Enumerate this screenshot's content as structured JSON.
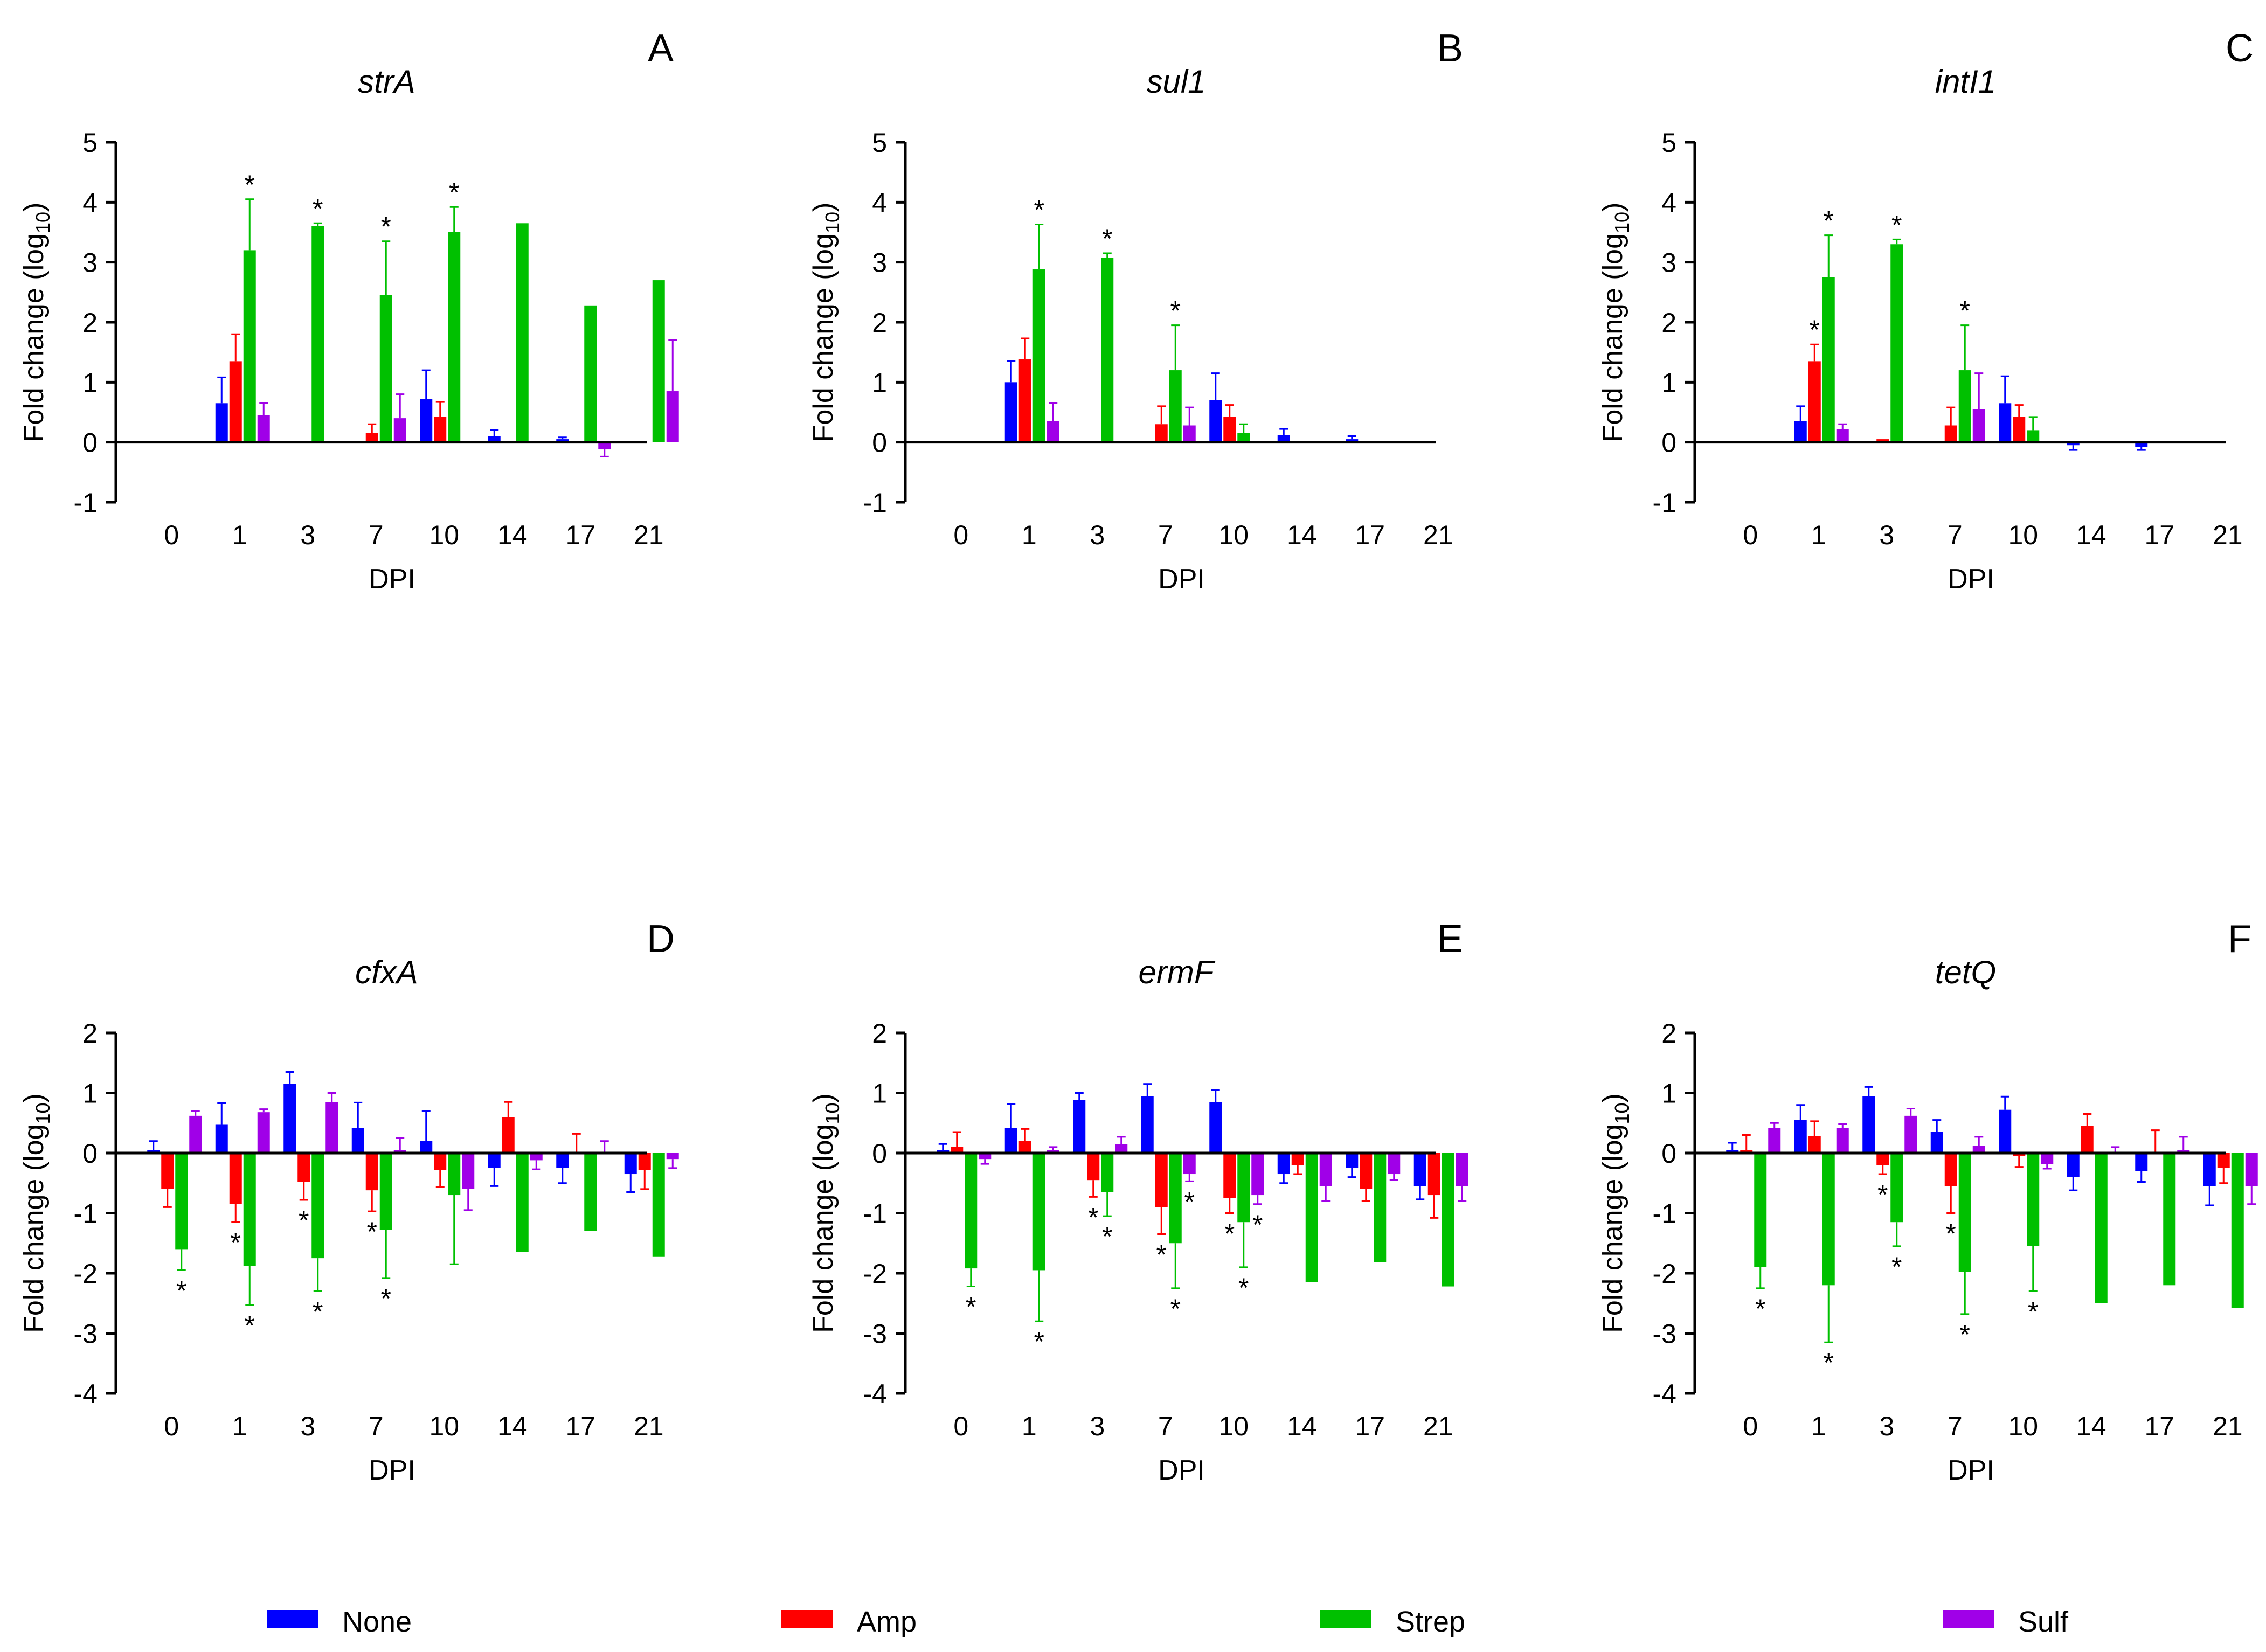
{
  "x_label": "DPI",
  "y_label_main": "Fold change (log",
  "y_label_sub": "10",
  "y_label_close": ")",
  "legend": [
    {
      "name": "None",
      "color": "#0000ff"
    },
    {
      "name": "Amp",
      "color": "#ff0000"
    },
    {
      "name": "Strep",
      "color": "#00c000"
    },
    {
      "name": "Sulf",
      "color": "#a000e8"
    }
  ],
  "chart_data": [
    {
      "type": "bar",
      "panel": "A",
      "title": "strA",
      "categories": [
        "0",
        "1",
        "3",
        "7",
        "10",
        "14",
        "17",
        "21"
      ],
      "ylim": [
        -1,
        5
      ],
      "yticks": [
        -1,
        0,
        1,
        2,
        3,
        4,
        5
      ],
      "series": [
        {
          "name": "None",
          "values": [
            0,
            0.65,
            0,
            0,
            0.72,
            0.1,
            0.05,
            0
          ],
          "errors": [
            0,
            0.43,
            0,
            0,
            0.48,
            0.1,
            0.03,
            0
          ]
        },
        {
          "name": "Amp",
          "values": [
            0,
            1.35,
            0,
            0.15,
            0.42,
            0,
            0,
            0
          ],
          "errors": [
            0,
            0.45,
            0,
            0.15,
            0.25,
            0,
            0,
            0
          ]
        },
        {
          "name": "Strep",
          "values": [
            0,
            3.2,
            3.6,
            2.45,
            3.5,
            3.65,
            2.28,
            2.7
          ],
          "errors": [
            0,
            0.85,
            0.05,
            0.9,
            0.42,
            0,
            0,
            0
          ]
        },
        {
          "name": "Sulf",
          "values": [
            0,
            0.45,
            0,
            0.4,
            0,
            0,
            -0.12,
            0.85
          ],
          "errors": [
            0,
            0.2,
            0,
            0.4,
            0,
            0,
            0.12,
            0.85
          ]
        }
      ],
      "annotations": [
        {
          "category": "1",
          "series": "Strep",
          "text": "*"
        },
        {
          "category": "3",
          "series": "Strep",
          "text": "*"
        },
        {
          "category": "7",
          "series": "Strep",
          "text": "*"
        },
        {
          "category": "10",
          "series": "Strep",
          "text": "*"
        }
      ]
    },
    {
      "type": "bar",
      "panel": "B",
      "title": "sul1",
      "categories": [
        "0",
        "1",
        "3",
        "7",
        "10",
        "14",
        "17",
        "21"
      ],
      "ylim": [
        -1,
        5
      ],
      "yticks": [
        -1,
        0,
        1,
        2,
        3,
        4,
        5
      ],
      "series": [
        {
          "name": "None",
          "values": [
            0,
            1.0,
            0,
            0,
            0.7,
            0.12,
            0.05,
            0
          ],
          "errors": [
            0,
            0.35,
            0,
            0,
            0.45,
            0.1,
            0.05,
            0
          ]
        },
        {
          "name": "Amp",
          "values": [
            0,
            1.38,
            0,
            0.3,
            0.42,
            0,
            0,
            0
          ],
          "errors": [
            0,
            0.35,
            0,
            0.3,
            0.2,
            0,
            0,
            0
          ]
        },
        {
          "name": "Strep",
          "values": [
            0,
            2.88,
            3.07,
            1.2,
            0.15,
            0,
            0,
            0
          ],
          "errors": [
            0,
            0.75,
            0.08,
            0.75,
            0.15,
            0,
            0,
            0
          ]
        },
        {
          "name": "Sulf",
          "values": [
            0,
            0.35,
            0,
            0.28,
            0,
            0,
            0,
            0
          ],
          "errors": [
            0,
            0.3,
            0,
            0.3,
            0,
            0,
            0,
            0
          ]
        }
      ],
      "annotations": [
        {
          "category": "1",
          "series": "Strep",
          "text": "*"
        },
        {
          "category": "3",
          "series": "Strep",
          "text": "*"
        },
        {
          "category": "7",
          "series": "Strep",
          "text": "*"
        }
      ]
    },
    {
      "type": "bar",
      "panel": "C",
      "title": "intI1",
      "categories": [
        "0",
        "1",
        "3",
        "7",
        "10",
        "14",
        "17",
        "21"
      ],
      "ylim": [
        -1,
        5
      ],
      "yticks": [
        -1,
        0,
        1,
        2,
        3,
        4,
        5
      ],
      "series": [
        {
          "name": "None",
          "values": [
            0,
            0.35,
            0,
            0,
            0.65,
            -0.05,
            -0.08,
            0
          ],
          "errors": [
            0,
            0.25,
            0,
            0,
            0.45,
            0.08,
            0.05,
            0
          ]
        },
        {
          "name": "Amp",
          "values": [
            0,
            1.35,
            0.05,
            0.28,
            0.42,
            0,
            0,
            0
          ],
          "errors": [
            0,
            0.28,
            0,
            0.3,
            0.2,
            0,
            0,
            0
          ]
        },
        {
          "name": "Strep",
          "values": [
            0,
            2.75,
            3.3,
            1.2,
            0.2,
            0,
            0,
            0
          ],
          "errors": [
            0,
            0.7,
            0.08,
            0.75,
            0.22,
            0,
            0,
            0
          ]
        },
        {
          "name": "Sulf",
          "values": [
            0,
            0.22,
            0,
            0.55,
            0,
            0,
            0,
            0
          ],
          "errors": [
            0,
            0.08,
            0,
            0.6,
            0,
            0,
            0,
            0
          ]
        }
      ],
      "annotations": [
        {
          "category": "1",
          "series": "Amp",
          "text": "*"
        },
        {
          "category": "1",
          "series": "Strep",
          "text": "*"
        },
        {
          "category": "3",
          "series": "Strep",
          "text": "*"
        },
        {
          "category": "7",
          "series": "Strep",
          "text": "*"
        }
      ]
    },
    {
      "type": "bar",
      "panel": "D",
      "title": "cfxA",
      "categories": [
        "0",
        "1",
        "3",
        "7",
        "10",
        "14",
        "17",
        "21"
      ],
      "ylim": [
        -4,
        2
      ],
      "yticks": [
        -4,
        -3,
        -2,
        -1,
        0,
        1,
        2
      ],
      "series": [
        {
          "name": "None",
          "values": [
            0.05,
            0.48,
            1.15,
            0.42,
            0.2,
            -0.25,
            -0.25,
            -0.35
          ],
          "errors": [
            0.15,
            0.35,
            0.2,
            0.42,
            0.5,
            0.3,
            0.25,
            0.3
          ]
        },
        {
          "name": "Amp",
          "values": [
            -0.6,
            -0.85,
            -0.48,
            -0.62,
            -0.28,
            0.6,
            0,
            -0.28
          ],
          "errors": [
            0.3,
            0.3,
            0.3,
            0.35,
            0.28,
            0.25,
            0.32,
            0.32
          ]
        },
        {
          "name": "Strep",
          "values": [
            -1.6,
            -1.88,
            -1.75,
            -1.28,
            -0.7,
            -1.65,
            -1.3,
            -1.72
          ],
          "errors": [
            0.35,
            0.65,
            0.55,
            0.8,
            1.15,
            0,
            0,
            0
          ]
        },
        {
          "name": "Sulf",
          "values": [
            0.62,
            0.68,
            0.85,
            0.05,
            -0.6,
            -0.12,
            0,
            -0.1
          ],
          "errors": [
            0.08,
            0.05,
            0.15,
            0.2,
            0.35,
            0.15,
            0.2,
            0.15
          ]
        }
      ],
      "annotations": [
        {
          "category": "0",
          "series": "Strep",
          "text": "*"
        },
        {
          "category": "1",
          "series": "Amp",
          "text": "*"
        },
        {
          "category": "1",
          "series": "Strep",
          "text": "*"
        },
        {
          "category": "3",
          "series": "Amp",
          "text": "*"
        },
        {
          "category": "3",
          "series": "Strep",
          "text": "*"
        },
        {
          "category": "7",
          "series": "Amp",
          "text": "*"
        },
        {
          "category": "7",
          "series": "Strep",
          "text": "*"
        }
      ]
    },
    {
      "type": "bar",
      "panel": "E",
      "title": "ermF",
      "categories": [
        "0",
        "1",
        "3",
        "7",
        "10",
        "14",
        "17",
        "21"
      ],
      "ylim": [
        -4,
        2
      ],
      "yticks": [
        -4,
        -3,
        -2,
        -1,
        0,
        1,
        2
      ],
      "series": [
        {
          "name": "None",
          "values": [
            0.05,
            0.42,
            0.88,
            0.95,
            0.85,
            -0.35,
            -0.25,
            -0.55
          ],
          "errors": [
            0.1,
            0.4,
            0.12,
            0.2,
            0.2,
            0.15,
            0.15,
            0.22
          ]
        },
        {
          "name": "Amp",
          "values": [
            0.1,
            0.2,
            -0.45,
            -0.9,
            -0.75,
            -0.2,
            -0.6,
            -0.7
          ],
          "errors": [
            0.25,
            0.2,
            0.28,
            0.45,
            0.25,
            0.15,
            0.2,
            0.38
          ]
        },
        {
          "name": "Strep",
          "values": [
            -1.92,
            -1.95,
            -0.65,
            -1.5,
            -1.15,
            -2.15,
            -1.82,
            -2.22
          ],
          "errors": [
            0.3,
            0.85,
            0.4,
            0.75,
            0.75,
            0,
            0,
            0
          ]
        },
        {
          "name": "Sulf",
          "values": [
            -0.1,
            0.05,
            0.15,
            -0.35,
            -0.7,
            -0.55,
            -0.35,
            -0.55
          ],
          "errors": [
            0.08,
            0.05,
            0.12,
            0.12,
            0.15,
            0.25,
            0.1,
            0.25
          ]
        }
      ],
      "annotations": [
        {
          "category": "0",
          "series": "Strep",
          "text": "*"
        },
        {
          "category": "1",
          "series": "Strep",
          "text": "*"
        },
        {
          "category": "3",
          "series": "Amp",
          "text": "*"
        },
        {
          "category": "3",
          "series": "Strep",
          "text": "*"
        },
        {
          "category": "7",
          "series": "Amp",
          "text": "*"
        },
        {
          "category": "7",
          "series": "Strep",
          "text": "*"
        },
        {
          "category": "7",
          "series": "Sulf",
          "text": "*"
        },
        {
          "category": "10",
          "series": "Amp",
          "text": "*"
        },
        {
          "category": "10",
          "series": "Strep",
          "text": "*"
        },
        {
          "category": "10",
          "series": "Sulf",
          "text": "*"
        }
      ]
    },
    {
      "type": "bar",
      "panel": "F",
      "title": "tetQ",
      "categories": [
        "0",
        "1",
        "3",
        "7",
        "10",
        "14",
        "17",
        "21"
      ],
      "ylim": [
        -4,
        2
      ],
      "yticks": [
        -4,
        -3,
        -2,
        -1,
        0,
        1,
        2
      ],
      "series": [
        {
          "name": "None",
          "values": [
            0.05,
            0.55,
            0.95,
            0.35,
            0.72,
            -0.4,
            -0.3,
            -0.55
          ],
          "errors": [
            0.12,
            0.25,
            0.15,
            0.2,
            0.22,
            0.22,
            0.18,
            0.32
          ]
        },
        {
          "name": "Amp",
          "values": [
            0.05,
            0.28,
            -0.2,
            -0.55,
            -0.05,
            0.45,
            0,
            -0.25
          ],
          "errors": [
            0.25,
            0.25,
            0.15,
            0.45,
            0.18,
            0.2,
            0.38,
            0.25
          ]
        },
        {
          "name": "Strep",
          "values": [
            -1.9,
            -2.2,
            -1.15,
            -1.98,
            -1.55,
            -2.5,
            -2.2,
            -2.58
          ],
          "errors": [
            0.35,
            0.95,
            0.4,
            0.7,
            0.75,
            0,
            0,
            0
          ]
        },
        {
          "name": "Sulf",
          "values": [
            0.42,
            0.42,
            0.62,
            0.12,
            -0.18,
            0.02,
            0.05,
            -0.55
          ],
          "errors": [
            0.08,
            0.06,
            0.12,
            0.15,
            0.08,
            0.08,
            0.22,
            0.3
          ]
        }
      ],
      "annotations": [
        {
          "category": "0",
          "series": "Strep",
          "text": "*"
        },
        {
          "category": "1",
          "series": "Strep",
          "text": "*"
        },
        {
          "category": "3",
          "series": "Amp",
          "text": "*"
        },
        {
          "category": "3",
          "series": "Strep",
          "text": "*"
        },
        {
          "category": "7",
          "series": "Amp",
          "text": "*"
        },
        {
          "category": "7",
          "series": "Strep",
          "text": "*"
        },
        {
          "category": "10",
          "series": "Strep",
          "text": "*"
        }
      ]
    }
  ]
}
